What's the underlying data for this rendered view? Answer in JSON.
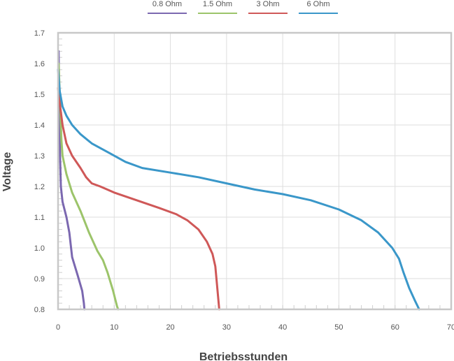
{
  "chart_data": {
    "type": "line",
    "xlabel": "Betriebsstunden",
    "ylabel": "Voltage",
    "xlim": [
      0,
      70
    ],
    "ylim": [
      0.8,
      1.7
    ],
    "x_ticks": [
      0,
      10,
      20,
      30,
      40,
      50,
      60,
      70
    ],
    "y_ticks": [
      "0.8",
      "0.9",
      "1.0",
      "1.1",
      "1.2",
      "1.3",
      "1.4",
      "1.5",
      "1.6",
      "1.7"
    ],
    "grid": true,
    "legend_position": "top",
    "series": [
      {
        "name": "0.8 Ohm",
        "color": "#7b68b0",
        "points": [
          [
            0.1,
            1.64
          ],
          [
            0.2,
            1.5
          ],
          [
            0.35,
            1.3
          ],
          [
            0.5,
            1.2
          ],
          [
            0.8,
            1.15
          ],
          [
            1.5,
            1.1
          ],
          [
            2.0,
            1.05
          ],
          [
            2.5,
            0.97
          ],
          [
            3.5,
            0.91
          ],
          [
            4.3,
            0.86
          ],
          [
            4.6,
            0.82
          ],
          [
            4.7,
            0.8
          ]
        ]
      },
      {
        "name": "1.5 Ohm",
        "color": "#9cc46a",
        "points": [
          [
            0.1,
            1.6
          ],
          [
            0.3,
            1.5
          ],
          [
            0.6,
            1.35
          ],
          [
            0.8,
            1.3
          ],
          [
            1.5,
            1.24
          ],
          [
            2.5,
            1.18
          ],
          [
            4,
            1.12
          ],
          [
            5.5,
            1.05
          ],
          [
            7,
            0.99
          ],
          [
            8,
            0.96
          ],
          [
            8.8,
            0.92
          ],
          [
            9.8,
            0.86
          ],
          [
            10.5,
            0.81
          ],
          [
            10.7,
            0.8
          ]
        ]
      },
      {
        "name": "3 Ohm",
        "color": "#cf5858",
        "points": [
          [
            0,
            1.52
          ],
          [
            0.3,
            1.47
          ],
          [
            0.8,
            1.4
          ],
          [
            1.5,
            1.34
          ],
          [
            2.5,
            1.3
          ],
          [
            4,
            1.26
          ],
          [
            5,
            1.23
          ],
          [
            6,
            1.21
          ],
          [
            7.5,
            1.2
          ],
          [
            10,
            1.18
          ],
          [
            14,
            1.155
          ],
          [
            18,
            1.13
          ],
          [
            21,
            1.11
          ],
          [
            23,
            1.09
          ],
          [
            25,
            1.06
          ],
          [
            26.5,
            1.02
          ],
          [
            27.5,
            0.98
          ],
          [
            28,
            0.94
          ],
          [
            28.3,
            0.88
          ],
          [
            28.5,
            0.84
          ],
          [
            28.7,
            0.8
          ]
        ]
      },
      {
        "name": "6 Ohm",
        "color": "#3a97c9",
        "points": [
          [
            0,
            1.58
          ],
          [
            0.3,
            1.51
          ],
          [
            0.8,
            1.46
          ],
          [
            1.5,
            1.43
          ],
          [
            2.5,
            1.4
          ],
          [
            4,
            1.37
          ],
          [
            6,
            1.34
          ],
          [
            9,
            1.31
          ],
          [
            12,
            1.28
          ],
          [
            15,
            1.26
          ],
          [
            20,
            1.245
          ],
          [
            25,
            1.23
          ],
          [
            30,
            1.21
          ],
          [
            35,
            1.19
          ],
          [
            40,
            1.175
          ],
          [
            45,
            1.155
          ],
          [
            50,
            1.125
          ],
          [
            54,
            1.09
          ],
          [
            57,
            1.05
          ],
          [
            59.5,
            1.0
          ],
          [
            60.7,
            0.965
          ],
          [
            61.5,
            0.92
          ],
          [
            62.5,
            0.87
          ],
          [
            63.5,
            0.83
          ],
          [
            64.3,
            0.8
          ]
        ]
      }
    ]
  }
}
